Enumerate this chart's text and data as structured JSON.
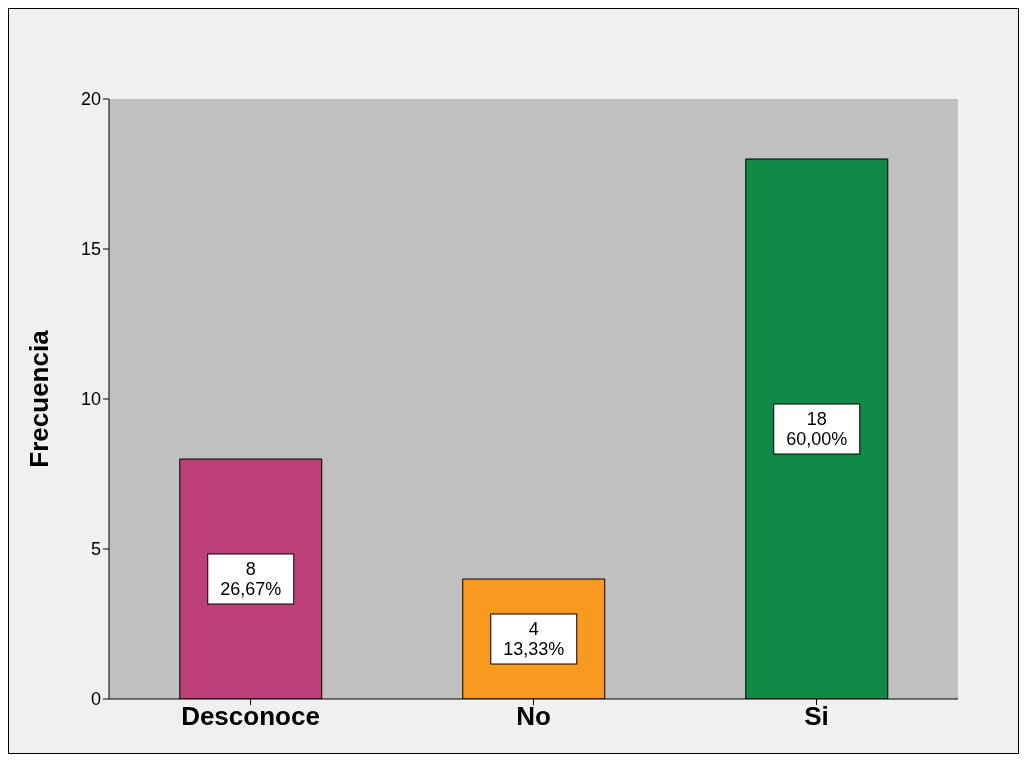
{
  "chart_data": {
    "type": "bar",
    "ylabel": "Frecuencia",
    "categories": [
      "Desconoce",
      "No",
      "Si"
    ],
    "values": [
      8,
      4,
      18
    ],
    "colors": [
      "#bc4077",
      "#f79a1f",
      "#0f8a48"
    ],
    "value_labels": [
      "8\n26,67%",
      "4\n13,33%",
      "18\n60,00%"
    ],
    "ylim": [
      0,
      20
    ],
    "yticks": [
      0,
      5,
      10,
      15,
      20
    ],
    "grid": false
  }
}
